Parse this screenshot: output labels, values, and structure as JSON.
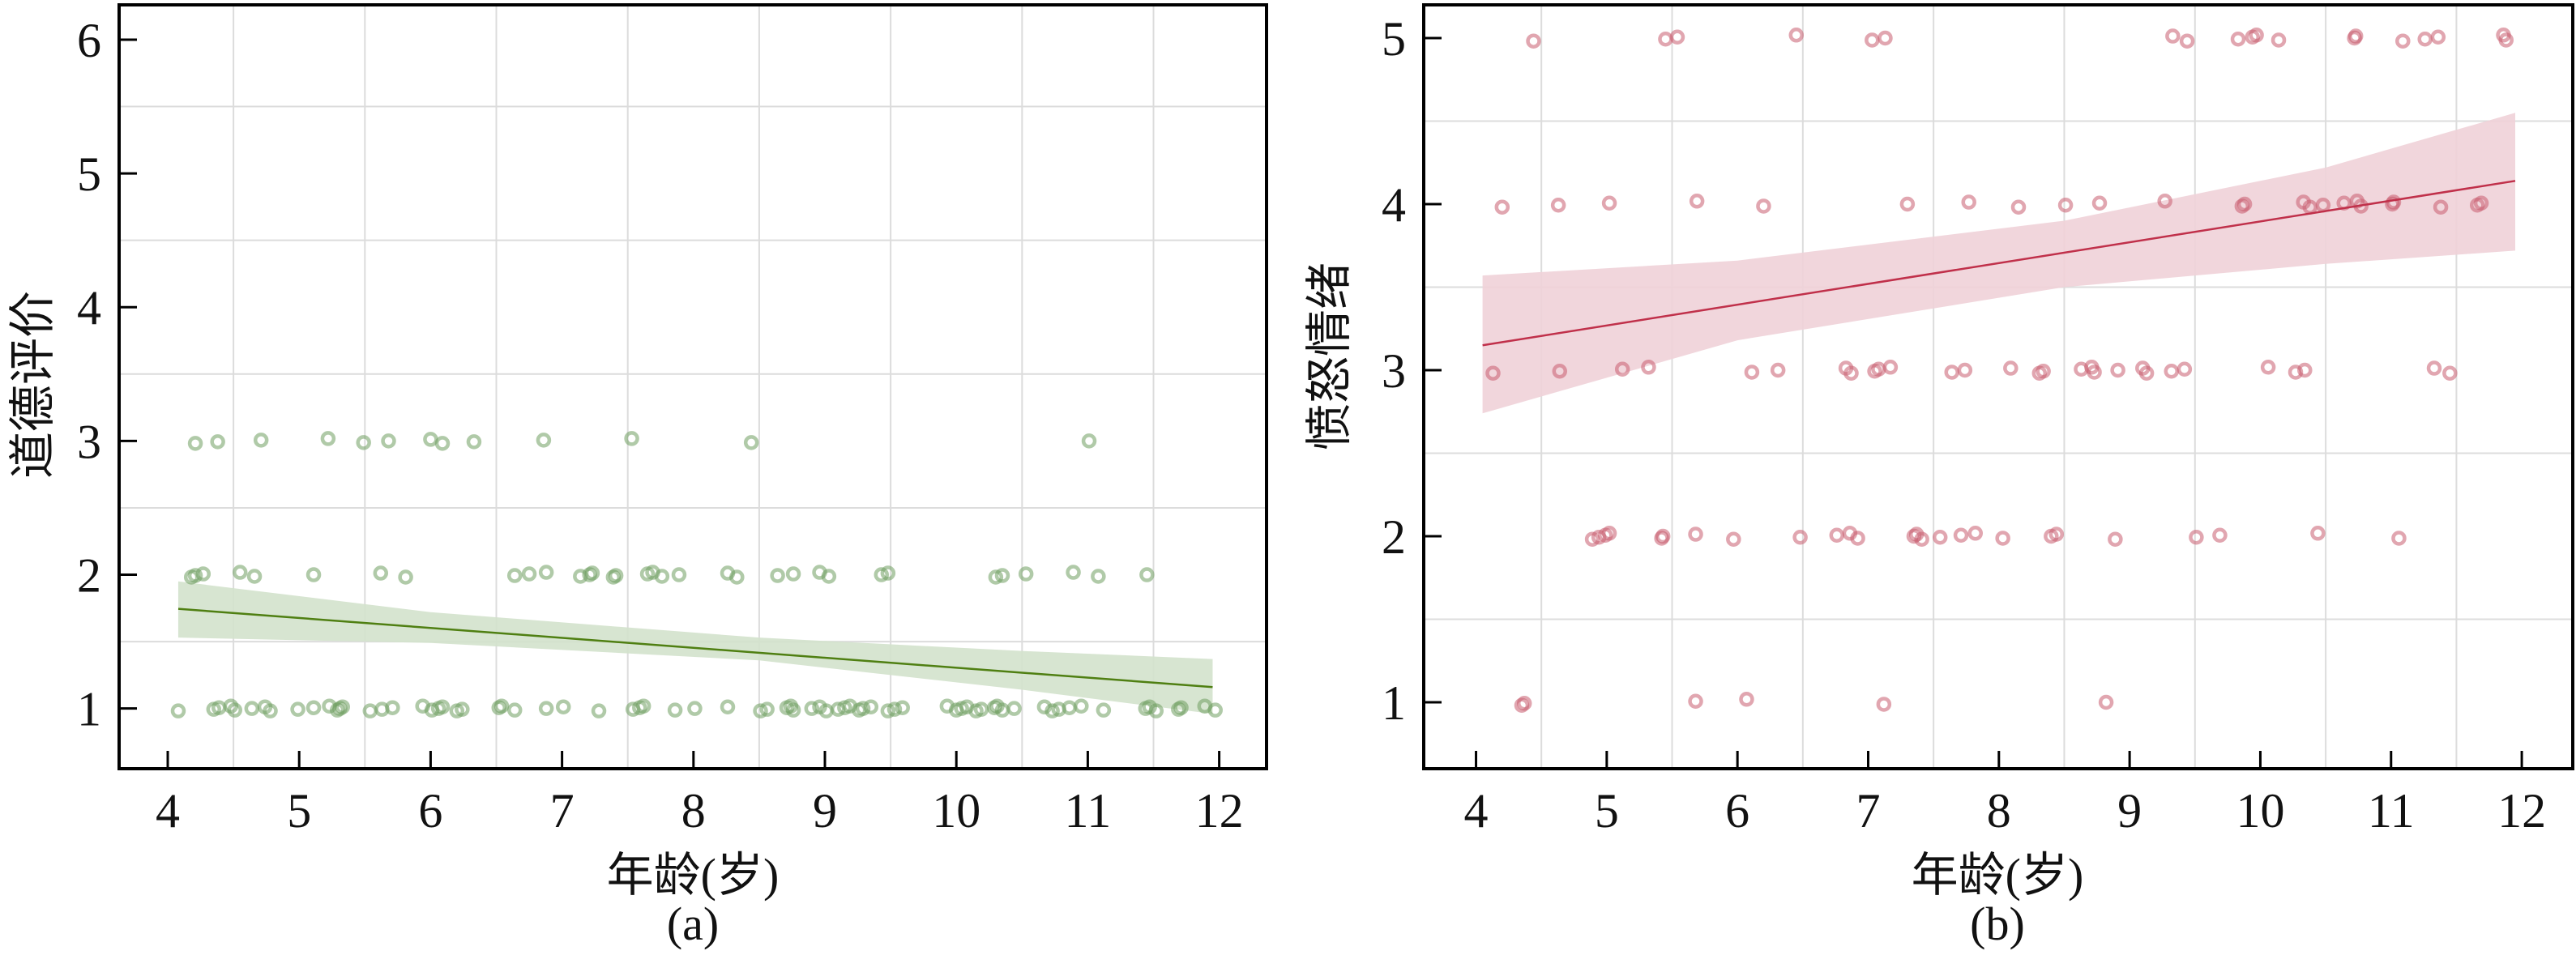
{
  "chart_data": [
    {
      "type": "scatter",
      "panel_label": "(a)",
      "xlabel": "年龄(岁)",
      "ylabel": "道德评价",
      "xlim": [
        3.63,
        12.36
      ],
      "ylim": [
        0.55,
        6.26
      ],
      "xticks": [
        4,
        5,
        6,
        7,
        8,
        9,
        10,
        11,
        12
      ],
      "yticks": [
        1,
        2,
        3,
        4,
        5,
        6
      ],
      "grid": true,
      "point_color": "#6f9e60",
      "line_color": "#4f7f12",
      "band_color": "#d3e2cc",
      "points_by_level": [
        {
          "y": 3,
          "x": [
            4.21,
            4.38,
            4.71,
            5.22,
            5.49,
            5.68,
            6.0,
            6.09,
            6.33,
            6.86,
            7.53,
            8.44,
            11.01
          ]
        },
        {
          "y": 2,
          "x": [
            4.18,
            4.21,
            4.27,
            4.55,
            4.66,
            5.11,
            5.62,
            5.81,
            6.64,
            6.75,
            6.88,
            7.14,
            7.21,
            7.23,
            7.39,
            7.41,
            7.65,
            7.69,
            7.76,
            7.89,
            8.26,
            8.33,
            8.64,
            8.76,
            8.96,
            9.03,
            9.43,
            9.48,
            10.3,
            10.35,
            10.53,
            10.89,
            11.08,
            11.45
          ]
        },
        {
          "y": 1,
          "x": [
            4.08,
            4.35,
            4.39,
            4.48,
            4.51,
            4.64,
            4.74,
            4.78,
            4.99,
            5.11,
            5.23,
            5.29,
            5.31,
            5.33,
            5.54,
            5.63,
            5.71,
            5.94,
            6.01,
            6.06,
            6.09,
            6.2,
            6.24,
            6.52,
            6.54,
            6.64,
            6.88,
            7.01,
            7.28,
            7.54,
            7.59,
            7.62,
            7.86,
            8.01,
            8.26,
            8.51,
            8.56,
            8.71,
            8.74,
            8.76,
            8.9,
            8.96,
            9.01,
            9.1,
            9.15,
            9.19,
            9.26,
            9.29,
            9.35,
            9.48,
            9.53,
            9.59,
            9.93,
            10.0,
            10.04,
            10.08,
            10.15,
            10.19,
            10.29,
            10.31,
            10.35,
            10.44,
            10.67,
            10.73,
            10.78,
            10.86,
            10.95,
            11.12,
            11.44,
            11.47,
            11.52,
            11.69,
            11.71,
            11.89,
            11.97
          ]
        }
      ],
      "regression": {
        "x": [
          4.08,
          11.95
        ],
        "y": [
          1.745,
          1.16
        ]
      },
      "ci_band": {
        "x": [
          4.08,
          6.0,
          8.5,
          10.5,
          11.95
        ],
        "upper": [
          1.95,
          1.72,
          1.53,
          1.43,
          1.37
        ],
        "lower": [
          1.53,
          1.49,
          1.36,
          1.14,
          0.96
        ]
      }
    },
    {
      "type": "scatter",
      "panel_label": "(b)",
      "xlabel": "年龄(岁)",
      "ylabel": "愤怒情绪",
      "xlim": [
        3.6,
        12.39
      ],
      "ylim": [
        0.6,
        5.2
      ],
      "xticks": [
        4,
        5,
        6,
        7,
        8,
        9,
        10,
        11,
        12
      ],
      "yticks": [
        1,
        2,
        3,
        4,
        5
      ],
      "grid": true,
      "point_color": "#c95d70",
      "line_color": "#c0304a",
      "band_color": "#efd2d8",
      "points_by_level": [
        {
          "y": 5,
          "x": [
            4.44,
            5.45,
            5.54,
            6.45,
            7.03,
            7.13,
            9.33,
            9.44,
            9.83,
            9.94,
            9.97,
            10.14,
            10.72,
            10.73,
            11.09,
            11.26,
            11.36,
            11.86,
            11.88
          ]
        },
        {
          "y": 4,
          "x": [
            4.2,
            4.63,
            5.02,
            5.69,
            6.2,
            7.3,
            7.77,
            8.15,
            8.51,
            8.77,
            9.27,
            9.86,
            9.88,
            10.33,
            10.38,
            10.48,
            10.64,
            10.74,
            10.77,
            11.01,
            11.02,
            11.38,
            11.66,
            11.69
          ]
        },
        {
          "y": 3,
          "x": [
            4.13,
            4.64,
            5.12,
            5.32,
            6.11,
            6.31,
            6.83,
            6.87,
            7.05,
            7.08,
            7.17,
            7.64,
            7.74,
            8.09,
            8.31,
            8.34,
            8.63,
            8.71,
            8.73,
            8.91,
            9.1,
            9.13,
            9.32,
            9.42,
            10.06,
            10.27,
            10.34,
            11.33,
            11.45
          ]
        },
        {
          "y": 2,
          "x": [
            4.89,
            4.94,
            4.99,
            5.02,
            5.42,
            5.43,
            5.68,
            5.97,
            6.48,
            6.76,
            6.86,
            6.92,
            7.35,
            7.37,
            7.41,
            7.55,
            7.71,
            7.82,
            8.03,
            8.4,
            8.44,
            8.89,
            9.51,
            9.69,
            10.44,
            11.06
          ]
        },
        {
          "y": 1,
          "x": [
            4.35,
            4.37,
            5.68,
            6.07,
            7.12,
            8.82
          ]
        }
      ],
      "regression": {
        "x": [
          4.05,
          11.95
        ],
        "y": [
          3.15,
          4.14
        ]
      },
      "ci_band": {
        "x": [
          4.05,
          6.0,
          8.5,
          10.5,
          11.95
        ],
        "upper": [
          3.57,
          3.66,
          3.9,
          4.22,
          4.55
        ],
        "lower": [
          2.74,
          3.18,
          3.5,
          3.64,
          3.72
        ]
      }
    }
  ]
}
